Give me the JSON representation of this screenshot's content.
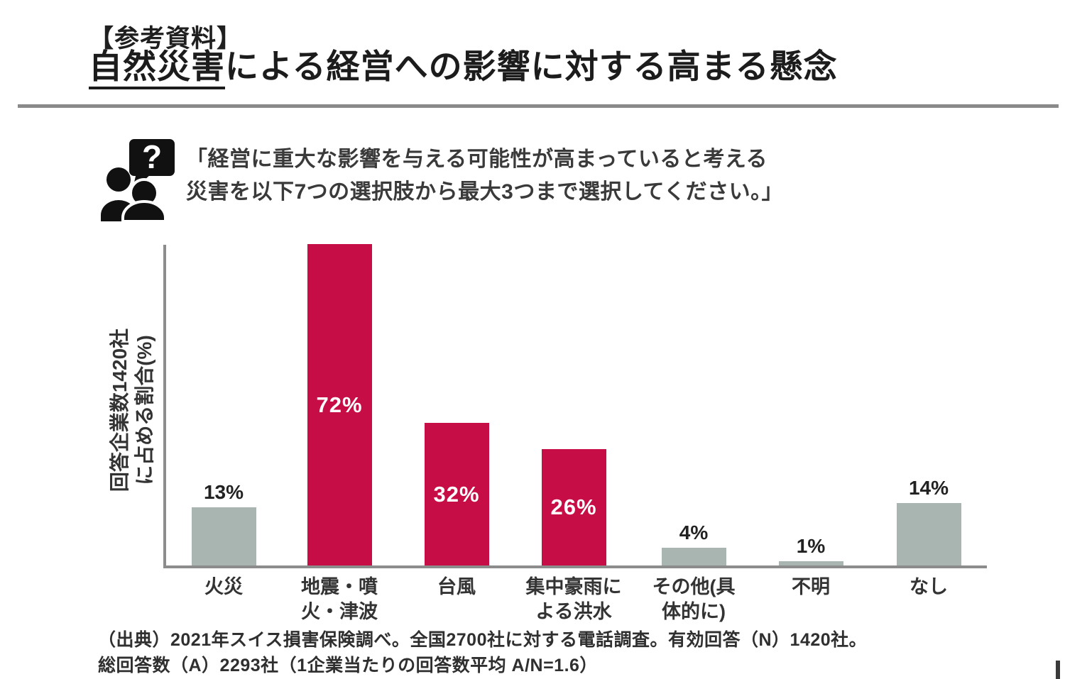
{
  "header": {
    "kicker": "【参考資料】",
    "title_underlined": "自然災害",
    "title_rest": "による経営への影響に対する高まる懸念"
  },
  "question": {
    "icon": "people-question-icon",
    "line1": "「経営に重大な影響を与える可能性が高まっていると考える",
    "line2": "災害を以下7つの選択肢から最大3つまで選択してください。」"
  },
  "chart_data": {
    "type": "bar",
    "title": "",
    "xlabel": "",
    "ylabel": "回答企業数1420社に占める割合(%)",
    "ylabel_lines": [
      "回答企業数1420社",
      "に占める割合(%)"
    ],
    "categories": [
      "火災",
      "地震・噴火・津波",
      "台風",
      "集中豪雨による洪水",
      "その他(具体的に)",
      "不明",
      "なし"
    ],
    "category_lines": [
      [
        "火災"
      ],
      [
        "地震・噴",
        "火・津波"
      ],
      [
        "台風"
      ],
      [
        "集中豪雨に",
        "よる洪水"
      ],
      [
        "その他(具",
        "体的に)"
      ],
      [
        "不明"
      ],
      [
        "なし"
      ]
    ],
    "values": [
      13,
      72,
      32,
      26,
      4,
      1,
      14
    ],
    "value_labels": [
      "13%",
      "72%",
      "32%",
      "26%",
      "4%",
      "1%",
      "14%"
    ],
    "bar_colors": [
      "#A9B5B0",
      "#C70D46",
      "#C70D46",
      "#C70D46",
      "#A9B5B0",
      "#A9B5B0",
      "#A9B5B0"
    ],
    "label_inside": [
      false,
      true,
      true,
      true,
      false,
      false,
      false
    ],
    "ylim": [
      0,
      75
    ],
    "grid": false,
    "legend": false
  },
  "source": {
    "line1": "（出典）2021年スイス損害保険調べ。全国2700社に対する電話調査。有効回答（N）1420社。",
    "line2": "総回答数（A）2293社（1企業当たりの回答数平均 A/N=1.6）"
  },
  "colors": {
    "accent_red": "#C70D46",
    "bar_gray": "#A9B5B0",
    "axis_gray": "#8C8C8C",
    "divider_gray": "#8A8A8A",
    "text_dark": "#1F1F1F"
  }
}
